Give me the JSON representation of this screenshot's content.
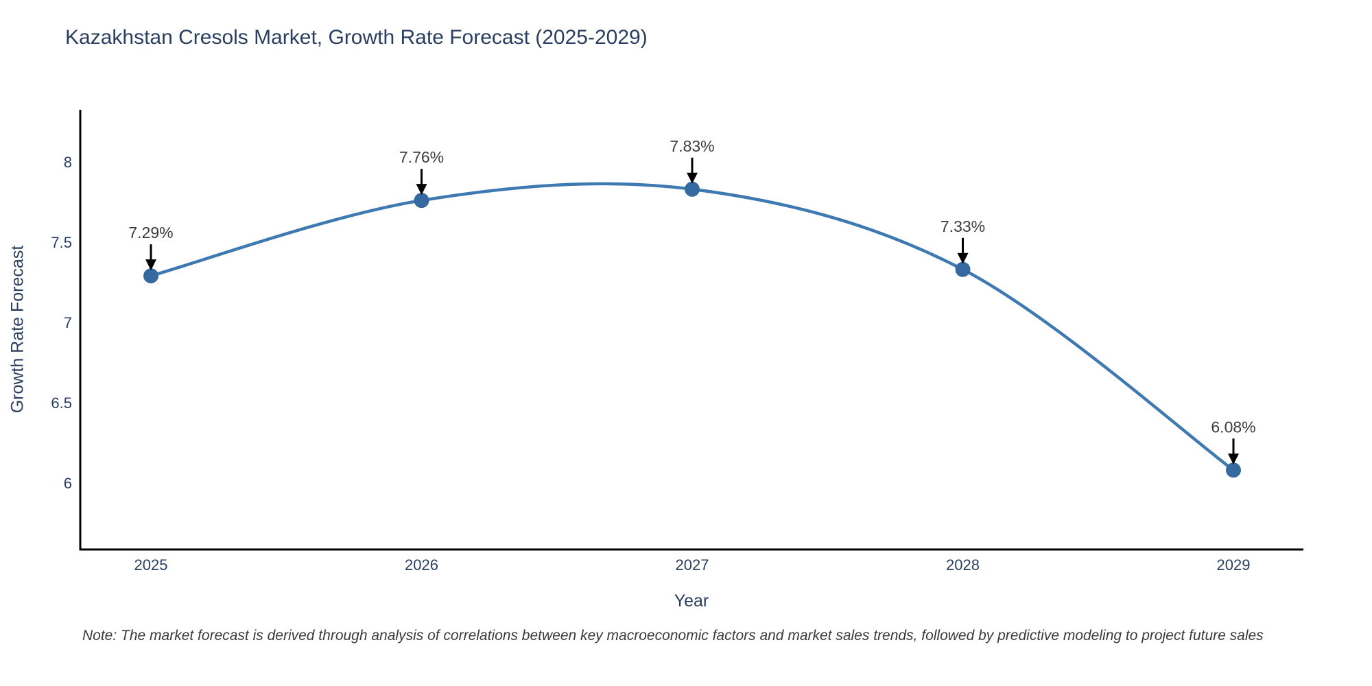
{
  "title": "Kazakhstan Cresols Market, Growth Rate Forecast (2025-2029)",
  "note": "Note: The market forecast is derived through analysis of correlations between key macroeconomic factors and market sales trends, followed by predictive modeling to project future sales",
  "chart_data": {
    "type": "line",
    "title": "Kazakhstan Cresols Market, Growth Rate Forecast (2025-2029)",
    "xlabel": "Year",
    "ylabel": "Growth Rate Forecast",
    "x": [
      2025,
      2026,
      2027,
      2028,
      2029
    ],
    "values": [
      7.29,
      7.76,
      7.83,
      7.33,
      6.08
    ],
    "point_labels": [
      "7.29%",
      "7.76%",
      "7.83%",
      "7.33%",
      "6.08%"
    ],
    "xtick_labels": [
      "2025",
      "2026",
      "2027",
      "2028",
      "2029"
    ],
    "ytick_values": [
      6,
      6.5,
      7,
      7.5,
      8
    ],
    "ytick_labels": [
      "6",
      "6.5",
      "7",
      "7.5",
      "8"
    ],
    "ylim": [
      5.58,
      8.33
    ],
    "line_shape": "spline",
    "grid": false,
    "legend_position": "none",
    "line_color": "#3e7ab1",
    "marker_color": "#35699f",
    "arrow_color": "#000000",
    "axis_line_color": "#000000",
    "axis_text_color": "#2a3f5f",
    "annotation_text_color": "#3b3b3b"
  }
}
